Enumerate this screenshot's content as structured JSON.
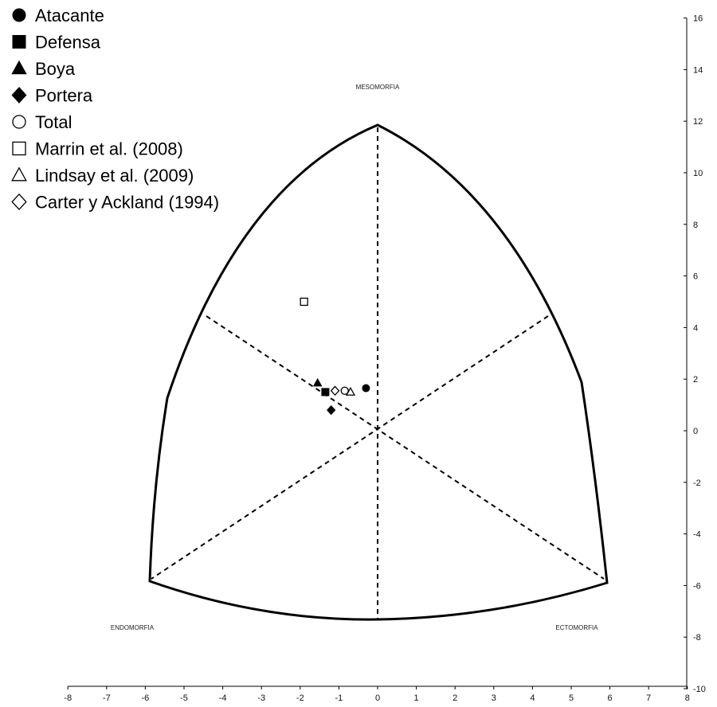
{
  "chart_data": {
    "type": "scatter",
    "title": "",
    "xlim": [
      -8,
      8
    ],
    "ylim": [
      -10,
      16
    ],
    "x_ticks": [
      -8,
      -7,
      -6,
      -5,
      -4,
      -3,
      -2,
      -1,
      0,
      1,
      2,
      3,
      4,
      5,
      6,
      7,
      8
    ],
    "y_ticks": [
      16,
      14,
      12,
      10,
      8,
      6,
      4,
      2,
      0,
      -2,
      -4,
      -6,
      -8,
      -10
    ],
    "axis_names": {
      "mesomorfia": "MESOMORFIA",
      "endomorfia": "ENDOMORFIA",
      "ectomorfia": "ECTOMORFIA"
    },
    "legend_position": "top-left",
    "series": [
      {
        "name": "Atacante",
        "marker": "circle-filled",
        "x": -0.3,
        "y": 1.65
      },
      {
        "name": "Defensa",
        "marker": "square-filled",
        "x": -1.35,
        "y": 1.5
      },
      {
        "name": "Boya",
        "marker": "triangle-filled",
        "x": -1.55,
        "y": 1.85
      },
      {
        "name": "Portera",
        "marker": "diamond-filled",
        "x": -1.2,
        "y": 0.8
      },
      {
        "name": "Total",
        "marker": "circle-open",
        "x": -0.85,
        "y": 1.55
      },
      {
        "name": "Marrin et al. (2008)",
        "marker": "square-open",
        "x": -1.9,
        "y": 5.0
      },
      {
        "name": "Lindsay et al. (2009)",
        "marker": "triangle-open",
        "x": -0.7,
        "y": 1.5
      },
      {
        "name": "Carter y Ackland (1994)",
        "marker": "diamond-open",
        "x": -1.1,
        "y": 1.55
      }
    ]
  }
}
